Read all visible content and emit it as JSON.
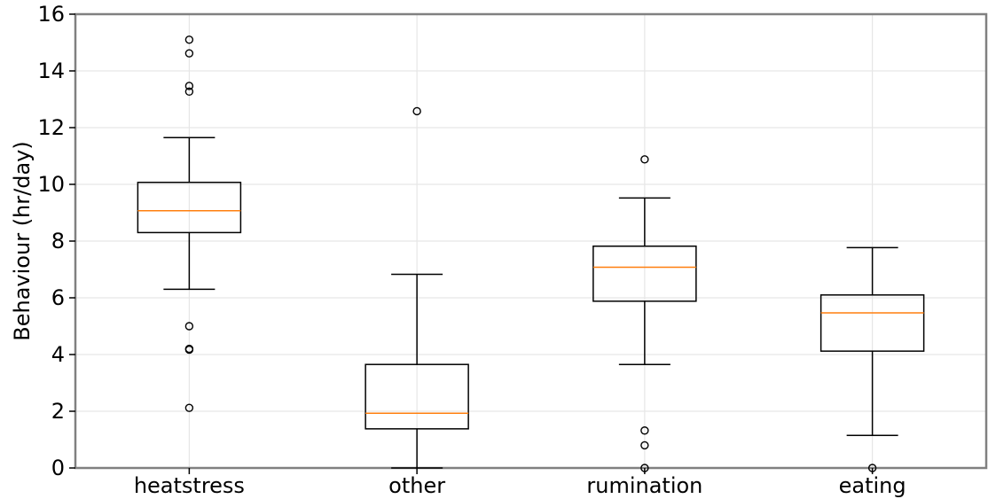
{
  "chart_data": {
    "type": "boxplot",
    "title": "",
    "xlabel": "",
    "ylabel": "Behaviour (hr/day)",
    "ylim": [
      0,
      16
    ],
    "yticks": [
      0,
      2,
      4,
      6,
      8,
      10,
      12,
      14,
      16
    ],
    "yticklabels": [
      "0",
      "2",
      "4",
      "6",
      "8",
      "10",
      "12",
      "14",
      "16"
    ],
    "grid": true,
    "categories": [
      "heatstress",
      "other",
      "rumination",
      "eating"
    ],
    "boxes": [
      {
        "label": "heatstress",
        "whisker_low": 6.3,
        "q1": 8.3,
        "median": 9.07,
        "q3": 10.07,
        "whisker_high": 11.65,
        "outliers": [
          15.1,
          14.62,
          13.47,
          13.27,
          5.0,
          4.2,
          4.17,
          2.12
        ]
      },
      {
        "label": "other",
        "whisker_low": 0.0,
        "q1": 1.38,
        "median": 1.93,
        "q3": 3.65,
        "whisker_high": 6.83,
        "outliers": [
          12.58
        ]
      },
      {
        "label": "rumination",
        "whisker_low": 3.65,
        "q1": 5.88,
        "median": 7.08,
        "q3": 7.82,
        "whisker_high": 9.52,
        "outliers": [
          10.88,
          1.32,
          0.8,
          0.0
        ]
      },
      {
        "label": "eating",
        "whisker_low": 1.15,
        "q1": 4.12,
        "median": 5.47,
        "q3": 6.1,
        "whisker_high": 7.77,
        "outliers": [
          0.0
        ]
      }
    ],
    "colors": {
      "box": "#000000",
      "median": "#ff7f0e",
      "grid": "#e6e6e6",
      "frame": "#808080"
    }
  }
}
